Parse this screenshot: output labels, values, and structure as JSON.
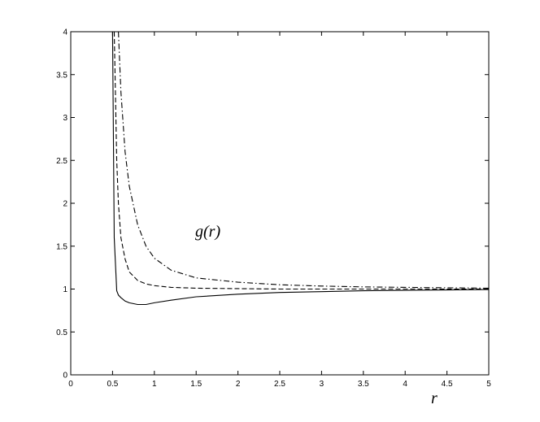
{
  "chart_data": {
    "type": "line",
    "x_label": "r",
    "annotation": "g(r)",
    "x": [
      0.5,
      0.52,
      0.55,
      0.57,
      0.6,
      0.65,
      0.7,
      0.8,
      0.9,
      1.0,
      1.2,
      1.5,
      2,
      2.5,
      3,
      3.5,
      4,
      4.5,
      5
    ],
    "series": [
      {
        "color": "#000000",
        "dash": "solid",
        "values": [
          4.0,
          1.6,
          0.98,
          0.93,
          0.9,
          0.86,
          0.84,
          0.82,
          0.82,
          0.84,
          0.87,
          0.91,
          0.94,
          0.96,
          0.97,
          0.98,
          0.985,
          0.99,
          0.995
        ]
      },
      {
        "color": "#000000",
        "dash": "dashed",
        "values": [
          null,
          4.0,
          2.5,
          2.0,
          1.6,
          1.35,
          1.2,
          1.1,
          1.06,
          1.04,
          1.02,
          1.01,
          1.005,
          1.0,
          1.0,
          1.0,
          1.0,
          1.0,
          1.0
        ]
      },
      {
        "color": "#000000",
        "dash": "dashdot",
        "values": [
          null,
          null,
          null,
          4.0,
          3.3,
          2.6,
          2.2,
          1.75,
          1.5,
          1.36,
          1.22,
          1.13,
          1.08,
          1.05,
          1.035,
          1.025,
          1.02,
          1.015,
          1.01
        ]
      }
    ],
    "xlim": [
      0,
      5
    ],
    "ylim": [
      0,
      4
    ],
    "xticks": [
      0,
      0.5,
      1,
      1.5,
      2,
      2.5,
      3,
      3.5,
      4,
      4.5,
      5
    ],
    "yticks": [
      0,
      0.5,
      1,
      1.5,
      2,
      2.5,
      3,
      3.5,
      4
    ],
    "grid": false
  }
}
